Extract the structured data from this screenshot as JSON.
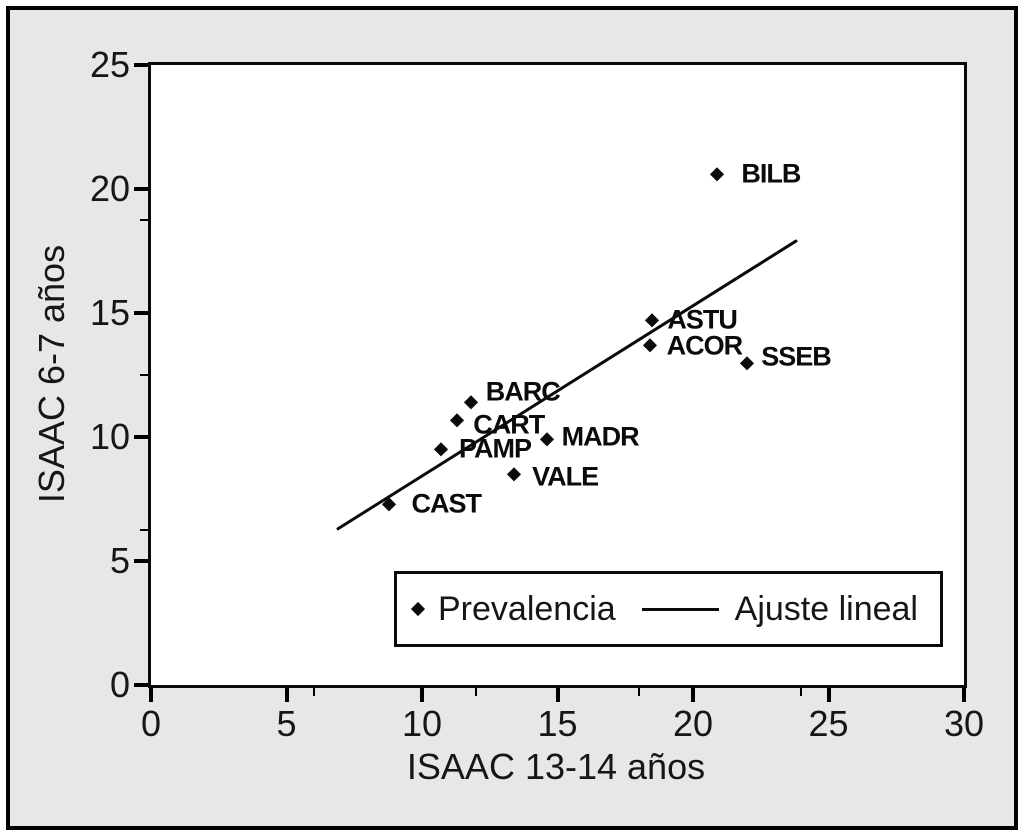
{
  "chart_data": {
    "type": "scatter",
    "title": "",
    "xlabel": "ISAAC 13-14 años",
    "ylabel": "ISAAC 6-7 años",
    "xlim": [
      0,
      30
    ],
    "ylim": [
      0,
      25
    ],
    "x_ticks": [
      0,
      5,
      10,
      15,
      20,
      25,
      30
    ],
    "y_ticks": [
      0,
      5,
      10,
      15,
      20,
      25
    ],
    "x_minor_ticks": [
      6,
      12,
      18,
      24
    ],
    "y_minor_ticks": [
      6.25,
      12.5,
      18.75
    ],
    "grid": false,
    "series": [
      {
        "name": "Prevalencia",
        "marker": "diamond",
        "points": [
          {
            "label": "BILB",
            "x": 20.9,
            "y": 20.6,
            "label_dx": 24,
            "label_dy": 0
          },
          {
            "label": "ASTU",
            "x": 18.5,
            "y": 14.7,
            "label_dx": 15,
            "label_dy": 0
          },
          {
            "label": "ACOR",
            "x": 18.4,
            "y": 13.7,
            "label_dx": 17,
            "label_dy": 1
          },
          {
            "label": "SSEB",
            "x": 22.0,
            "y": 13.0,
            "label_dx": 14,
            "label_dy": -6
          },
          {
            "label": "BARC",
            "x": 11.8,
            "y": 11.4,
            "label_dx": 15,
            "label_dy": -10
          },
          {
            "label": "CART",
            "x": 11.3,
            "y": 10.7,
            "label_dx": 16,
            "label_dy": 5
          },
          {
            "label": "PAMP",
            "x": 10.7,
            "y": 9.5,
            "label_dx": 18,
            "label_dy": 0
          },
          {
            "label": "MADR",
            "x": 14.6,
            "y": 9.9,
            "label_dx": 15,
            "label_dy": -2
          },
          {
            "label": "VALE",
            "x": 13.4,
            "y": 8.5,
            "label_dx": 18,
            "label_dy": 3
          },
          {
            "label": "CAST",
            "x": 8.8,
            "y": 7.3,
            "label_dx": 22,
            "label_dy": 0
          }
        ]
      }
    ],
    "trend_line": {
      "name": "Ajuste lineal",
      "x1": 6.9,
      "y1": 6.3,
      "x2": 23.8,
      "y2": 17.9
    },
    "legend": {
      "position": "inside-bottom",
      "items": [
        {
          "marker": "diamond",
          "label": "Prevalencia"
        },
        {
          "marker": "line",
          "label": "Ajuste lineal"
        }
      ]
    },
    "colors": {
      "marker": "#0b0b0b",
      "trend_line": "#0b0b0b",
      "figure_bg": "#e7e7e7",
      "plot_bg": "#ffffff",
      "axis": "#000000"
    }
  }
}
